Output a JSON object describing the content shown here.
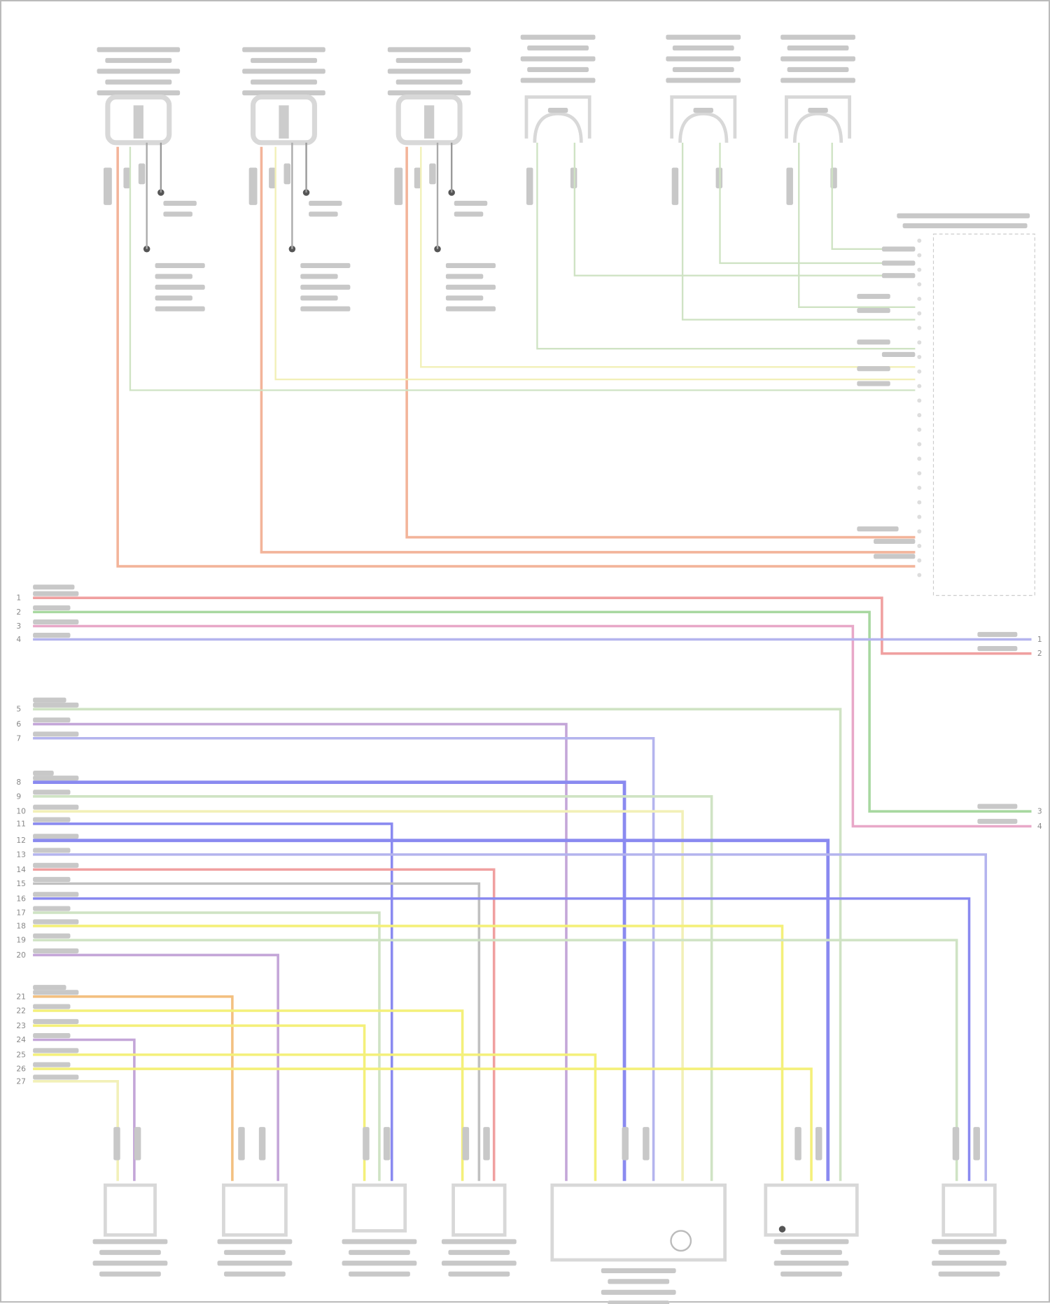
{
  "colors": {
    "red": "#f0a0a0",
    "orange_red": "#f3b49a",
    "green": "#a8d8a0",
    "pale_green": "#cfe3c4",
    "yellow": "#f4f07a",
    "pale_yellow": "#f2f0b8",
    "blue": "#8a8af0",
    "pale_blue": "#b4b4ee",
    "purple": "#c4a6d8",
    "pink": "#e8a8c8",
    "gray": "#c0c0c0",
    "component": "#d8d8d8"
  },
  "left_connector_pins": {
    "group1": [
      "1",
      "2",
      "3",
      "4"
    ],
    "group2": [
      "5",
      "6",
      "7"
    ],
    "group3": [
      "8",
      "9",
      "10",
      "11",
      "12",
      "13",
      "14",
      "15",
      "16",
      "17",
      "18",
      "19",
      "20"
    ],
    "group4": [
      "21",
      "22",
      "23",
      "24",
      "25",
      "26",
      "27"
    ]
  },
  "right_connector_pins": {
    "upper": [
      "1",
      "2"
    ],
    "lower": [
      "3",
      "4"
    ]
  },
  "top_components": [
    "ignition-coil-1",
    "ignition-coil-2",
    "ignition-coil-3",
    "fuel-injector-1",
    "fuel-injector-2",
    "fuel-injector-3"
  ],
  "bottom_components": [
    "pressure-sensor-1",
    "position-sensor-1",
    "sensor-3",
    "sensor-4",
    "control-module",
    "pressure-sensor-2",
    "pressure-sensor-3"
  ],
  "ecm_connector": "engine-control-connector"
}
